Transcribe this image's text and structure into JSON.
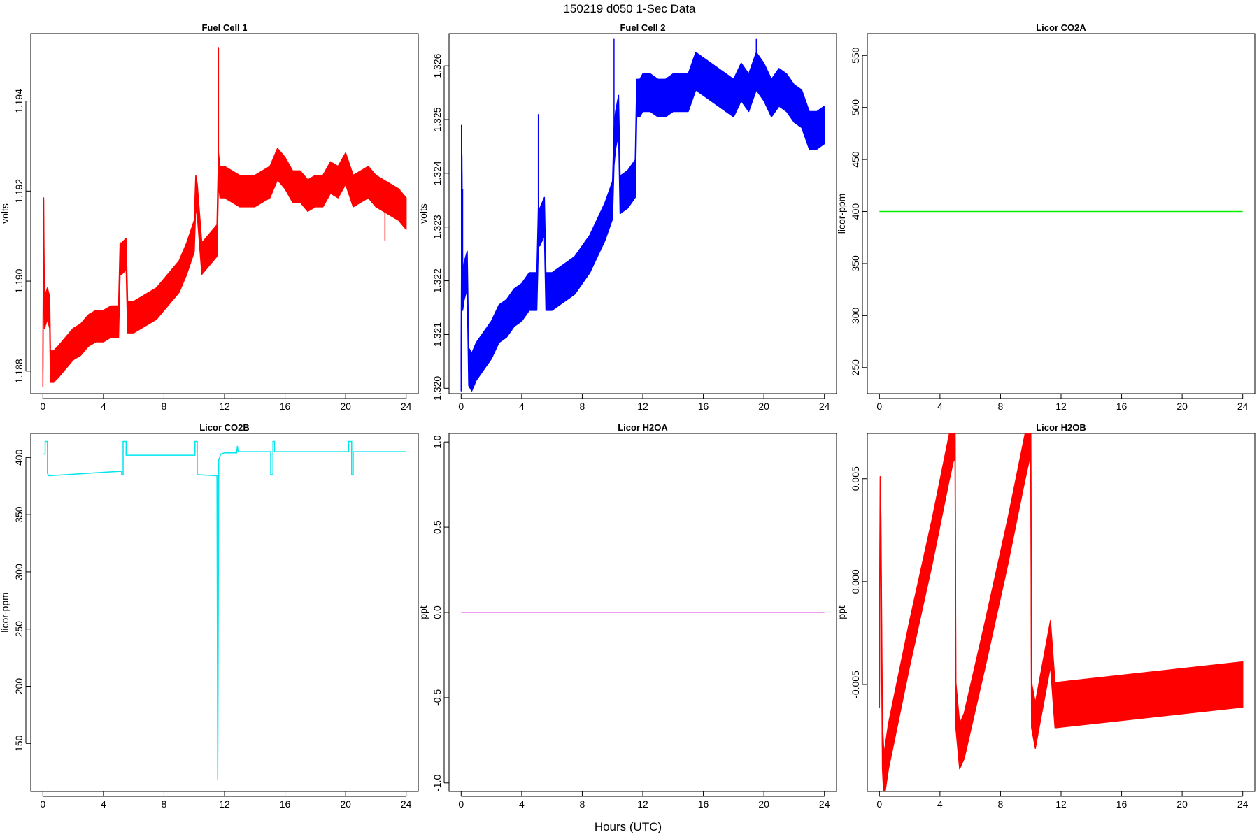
{
  "figure": {
    "title": "150219   d050   1-Sec Data",
    "xlabel": "Hours (UTC)"
  },
  "chart_data": [
    {
      "type": "line",
      "title": "Fuel Cell 1",
      "ylabel": "volts",
      "color": "#ff0000",
      "xlim": [
        -0.8,
        24.8
      ],
      "ylim": [
        1.1875,
        1.1955
      ],
      "xticks": [
        0,
        4,
        8,
        12,
        16,
        20,
        24
      ],
      "yticks": [
        1.188,
        1.19,
        1.192,
        1.194
      ],
      "ytick_labels": [
        "1.188",
        "1.190",
        "1.192",
        "1.194"
      ],
      "band": 0.00035,
      "series": [
        {
          "x": [
            0,
            0.05,
            0.1,
            0.3,
            0.45,
            0.5,
            0.7,
            1,
            1.5,
            2,
            2.5,
            3,
            3.5,
            4,
            4.5,
            5,
            5.1,
            5.2,
            5.5,
            5.6,
            6,
            6.5,
            7,
            7.5,
            8,
            8.5,
            9,
            9.5,
            10,
            10.1,
            10.2,
            10.5,
            11,
            11.5,
            11.6,
            11.7,
            12,
            12.5,
            13,
            13.5,
            14,
            14.5,
            15,
            15.5,
            16,
            16.5,
            17,
            17.5,
            18,
            18.5,
            19,
            19.5,
            20,
            20.5,
            21,
            21.5,
            22,
            22.5,
            23,
            23.5,
            24
          ],
          "y": [
            1.188,
            1.1915,
            1.1893,
            1.1895,
            1.1893,
            1.1881,
            1.1881,
            1.1882,
            1.1884,
            1.1886,
            1.1887,
            1.1889,
            1.189,
            1.189,
            1.1891,
            1.1891,
            1.1905,
            1.1905,
            1.1906,
            1.1892,
            1.1892,
            1.1893,
            1.1894,
            1.1895,
            1.1897,
            1.1899,
            1.1901,
            1.1905,
            1.191,
            1.192,
            1.1918,
            1.1905,
            1.1907,
            1.1909,
            1.1925,
            1.1922,
            1.1922,
            1.1921,
            1.192,
            1.192,
            1.192,
            1.1921,
            1.1922,
            1.1926,
            1.1924,
            1.1921,
            1.1921,
            1.1919,
            1.192,
            1.192,
            1.1923,
            1.1922,
            1.1925,
            1.192,
            1.1921,
            1.1922,
            1.192,
            1.1919,
            1.1918,
            1.1917,
            1.1915
          ]
        }
      ],
      "spikes": [
        {
          "x": 0.05,
          "y": 1.1918
        },
        {
          "x": 11.6,
          "y": 1.1952
        },
        {
          "x": 22.6,
          "y": 1.1909
        }
      ]
    },
    {
      "type": "line",
      "title": "Fuel Cell 2",
      "ylabel": "volts",
      "color": "#0000ff",
      "xlim": [
        -0.8,
        24.8
      ],
      "ylim": [
        1.3199,
        1.3266
      ],
      "xticks": [
        0,
        4,
        8,
        12,
        16,
        20,
        24
      ],
      "yticks": [
        1.32,
        1.321,
        1.322,
        1.323,
        1.324,
        1.325,
        1.326
      ],
      "ytick_labels": [
        "1.320",
        "1.321",
        "1.322",
        "1.323",
        "1.324",
        "1.325",
        "1.326"
      ],
      "band": 0.00035,
      "series": [
        {
          "x": [
            0,
            0.05,
            0.1,
            0.2,
            0.4,
            0.5,
            0.7,
            1,
            1.5,
            2,
            2.5,
            3,
            3.5,
            4,
            4.5,
            5,
            5.1,
            5.2,
            5.5,
            5.6,
            6,
            6.5,
            7,
            7.5,
            8,
            8.5,
            9,
            9.5,
            10,
            10.1,
            10.2,
            10.4,
            10.5,
            11,
            11.5,
            11.6,
            11.8,
            12,
            12.5,
            13,
            13.5,
            14,
            14.5,
            15,
            15.5,
            16,
            16.5,
            17,
            17.5,
            18,
            18.5,
            19,
            19.5,
            20,
            20.5,
            21,
            21.5,
            22,
            22.5,
            23,
            23.5,
            24
          ],
          "y": [
            1.3203,
            1.324,
            1.3218,
            1.322,
            1.3222,
            1.3204,
            1.3203,
            1.3205,
            1.3207,
            1.3209,
            1.3212,
            1.3213,
            1.3215,
            1.3216,
            1.3218,
            1.3218,
            1.323,
            1.323,
            1.3232,
            1.3218,
            1.3218,
            1.3219,
            1.322,
            1.3221,
            1.3223,
            1.3225,
            1.3228,
            1.3231,
            1.3235,
            1.3245,
            1.3248,
            1.3251,
            1.3236,
            1.3237,
            1.3239,
            1.3254,
            1.3254,
            1.3255,
            1.3255,
            1.3254,
            1.3254,
            1.3255,
            1.3255,
            1.3255,
            1.3259,
            1.3258,
            1.3257,
            1.3256,
            1.3255,
            1.3254,
            1.3257,
            1.3255,
            1.3259,
            1.3257,
            1.3254,
            1.3256,
            1.3255,
            1.3253,
            1.3252,
            1.3248,
            1.3248,
            1.3249
          ]
        }
      ],
      "spikes": [
        {
          "x": 0.02,
          "y": 1.3249
        },
        {
          "x": 0.1,
          "y": 1.3237
        },
        {
          "x": 5.1,
          "y": 1.3251
        },
        {
          "x": 10.1,
          "y": 1.3265
        },
        {
          "x": 10.4,
          "y": 1.3253
        },
        {
          "x": 19.5,
          "y": 1.3265
        }
      ]
    },
    {
      "type": "line",
      "title": "Licor CO2A",
      "ylabel": "licor-ppm",
      "color": "#00ee00",
      "xlim": [
        -0.8,
        24.8
      ],
      "ylim": [
        225,
        571
      ],
      "xticks": [
        0,
        4,
        8,
        12,
        16,
        20,
        24
      ],
      "yticks": [
        250,
        300,
        350,
        400,
        450,
        500,
        550
      ],
      "ytick_labels": [
        "250",
        "300",
        "350",
        "400",
        "450",
        "500",
        "550"
      ],
      "series": [
        {
          "x": [
            0,
            24
          ],
          "y": [
            400,
            400
          ]
        }
      ]
    },
    {
      "type": "line",
      "title": "Licor CO2B",
      "ylabel": "licor-ppm",
      "color": "#00e5ee",
      "xlim": [
        -0.8,
        24.8
      ],
      "ylim": [
        108,
        421
      ],
      "xticks": [
        0,
        4,
        8,
        12,
        16,
        20,
        24
      ],
      "yticks": [
        150,
        200,
        250,
        300,
        350,
        400
      ],
      "ytick_labels": [
        "150",
        "200",
        "250",
        "300",
        "350",
        "400"
      ],
      "series": [
        {
          "x": [
            0,
            0.15,
            0.15,
            0.3,
            0.3,
            0.4,
            5.2,
            5.2,
            5.3,
            5.3,
            5.5,
            5.5,
            10,
            10.05,
            10.05,
            10.2,
            10.2,
            11.5,
            11.55,
            11.62,
            11.75,
            12,
            12.5,
            12.8,
            12.85,
            12.9,
            13,
            15,
            15.05,
            15.05,
            15.2,
            15.2,
            15.3,
            15.3,
            20.2,
            20.2,
            20.4,
            20.4,
            20.5,
            20.5,
            24
          ],
          "y": [
            403,
            403,
            414,
            414,
            386,
            384,
            388,
            385,
            385,
            414,
            414,
            402,
            402,
            402,
            414,
            414,
            385,
            384,
            118,
            398,
            403,
            404,
            404,
            404,
            410,
            405,
            405,
            405,
            405,
            385,
            385,
            414,
            414,
            405,
            405,
            414,
            414,
            385,
            385,
            405,
            405
          ]
        }
      ]
    },
    {
      "type": "line",
      "title": "Licor H2OA",
      "ylabel": "ppt",
      "color": "#ee82ee",
      "xlim": [
        -0.8,
        24.8
      ],
      "ylim": [
        -1.05,
        1.05
      ],
      "xticks": [
        0,
        4,
        8,
        12,
        16,
        20,
        24
      ],
      "yticks": [
        -1.0,
        -0.5,
        0.0,
        0.5,
        1.0
      ],
      "ytick_labels": [
        "-1.0",
        "-0.5",
        "0.0",
        "0.5",
        "1.0"
      ],
      "series": [
        {
          "x": [
            0,
            24
          ],
          "y": [
            0,
            0
          ]
        }
      ]
    },
    {
      "type": "line",
      "title": "Licor H2OB",
      "ylabel": "ppt",
      "color": "#ff0000",
      "xlim": [
        -0.8,
        24.8
      ],
      "ylim": [
        -0.0102,
        0.0072
      ],
      "xticks": [
        0,
        4,
        8,
        12,
        16,
        20,
        24
      ],
      "yticks": [
        -0.005,
        0.0,
        0.005
      ],
      "ytick_labels": [
        "-0.005",
        "0.000",
        "0.005"
      ],
      "series": [
        {
          "x": [
            0,
            0.05,
            0.1,
            0.2,
            0.3,
            0.6,
            2,
            3.5,
            4.6,
            4.9,
            5.0,
            5.05,
            5.3,
            5.6,
            7,
            8.5,
            9.6,
            9.9,
            10.0,
            10.05,
            10.3,
            10.8,
            11.3,
            11.6,
            11.7
          ],
          "y": [
            -0.005,
            0.004,
            0.002,
            -0.008,
            -0.0095,
            -0.008,
            -0.003,
            0.002,
            0.006,
            0.007,
            0.007,
            -0.006,
            -0.008,
            -0.0075,
            -0.003,
            0.002,
            0.006,
            0.007,
            0.007,
            -0.006,
            -0.007,
            -0.005,
            -0.003,
            -0.006,
            -0.006
          ]
        },
        {
          "x": [
            11.7,
            24
          ],
          "y": [
            -0.006,
            -0.005
          ]
        }
      ],
      "band": 0.0011
    }
  ]
}
